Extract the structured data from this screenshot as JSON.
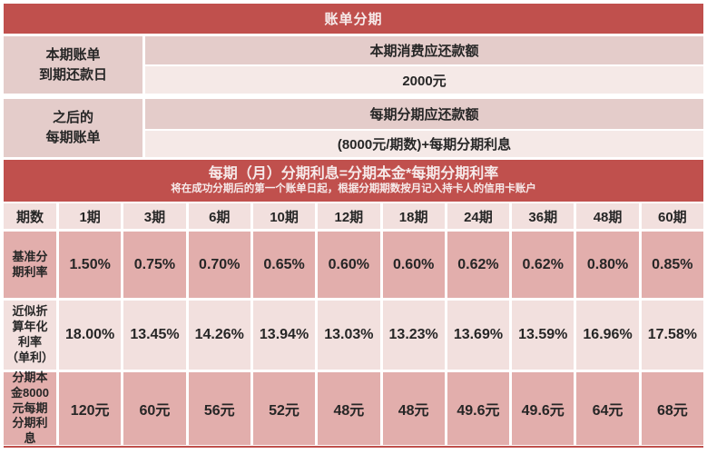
{
  "title": "账单分期",
  "colors": {
    "header_red": "#C0504D",
    "pink_dark_upper": "#E4CCCA",
    "pink_light_upper": "#F5E9E7",
    "pink_dark_lower": "#E2AEAC",
    "pink_light_lower": "#F2E0DE"
  },
  "sections": {
    "current": {
      "label": "本期账单\n到期还款日",
      "header": "本期消费应还款额",
      "value": "2000元"
    },
    "future": {
      "label": "之后的\n每期账单",
      "header": "每期分期应还款额",
      "value": "(8000元/期数)+每期分期利息"
    }
  },
  "banner": {
    "title": "每期（月）分期利息=分期本金*每期分期利率",
    "subtitle": "将在成功分期后的第一个账单日起，根据分期期数按月记入持卡人的信用卡账户"
  },
  "rate_table": {
    "corner": "期数",
    "periods": [
      "1期",
      "3期",
      "6期",
      "10期",
      "12期",
      "18期",
      "24期",
      "36期",
      "48期",
      "60期"
    ],
    "rows": [
      {
        "label": "基准分\n期利率",
        "values": [
          "1.50%",
          "0.75%",
          "0.70%",
          "0.65%",
          "0.60%",
          "0.60%",
          "0.62%",
          "0.62%",
          "0.80%",
          "0.85%"
        ]
      },
      {
        "label": "近似折\n算年化\n利率\n（单利）",
        "values": [
          "18.00%",
          "13.45%",
          "14.26%",
          "13.94%",
          "13.03%",
          "13.23%",
          "13.69%",
          "13.59%",
          "16.96%",
          "17.58%"
        ]
      },
      {
        "label": "分期本\n金8000\n元每期\n分期利\n息",
        "values": [
          "120元",
          "60元",
          "56元",
          "52元",
          "48元",
          "48元",
          "49.6元",
          "49.6元",
          "64元",
          "68元"
        ]
      }
    ]
  }
}
